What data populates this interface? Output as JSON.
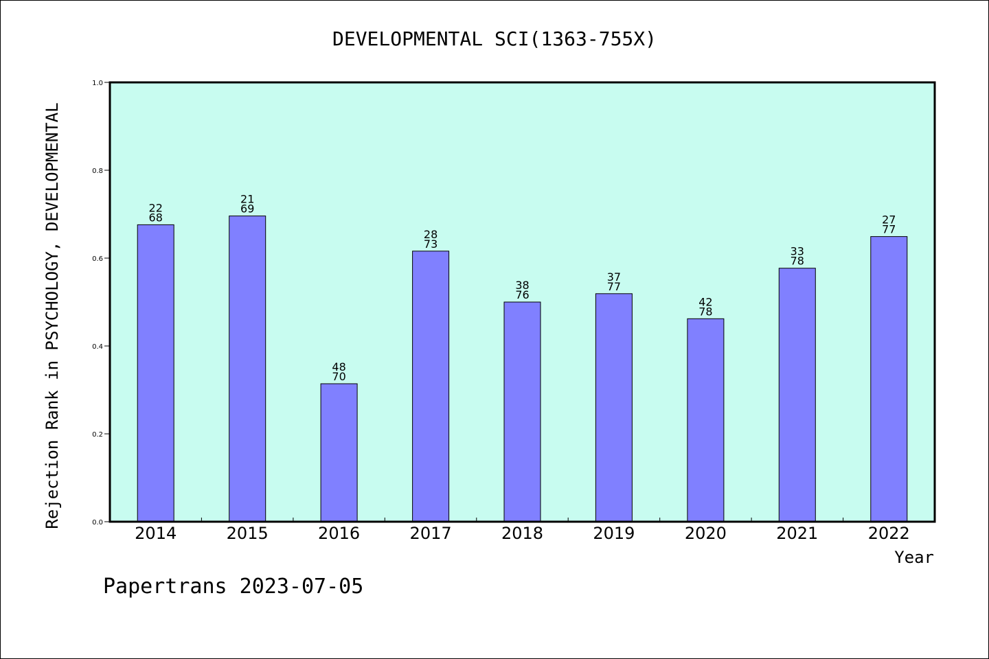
{
  "chart_data": {
    "type": "bar",
    "title": "DEVELOPMENTAL SCI(1363-755X)",
    "xlabel": "Year",
    "ylabel": "Rejection Rank in PSYCHOLOGY, DEVELOPMENTAL",
    "footer": "Papertrans 2023-07-05",
    "categories": [
      "2014",
      "2015",
      "2016",
      "2017",
      "2018",
      "2019",
      "2020",
      "2021",
      "2022"
    ],
    "values": [
      0.676,
      0.696,
      0.314,
      0.616,
      0.5,
      0.519,
      0.462,
      0.577,
      0.649
    ],
    "bar_labels": [
      [
        "22",
        "68"
      ],
      [
        "21",
        "69"
      ],
      [
        "48",
        "70"
      ],
      [
        "28",
        "73"
      ],
      [
        "38",
        "76"
      ],
      [
        "37",
        "77"
      ],
      [
        "42",
        "78"
      ],
      [
        "33",
        "78"
      ],
      [
        "27",
        "77"
      ]
    ],
    "yticks": [
      "0.0",
      "0.2",
      "0.4",
      "0.6",
      "0.8",
      "1.0"
    ],
    "ylim": [
      0,
      1
    ],
    "grid": false,
    "legend": "none",
    "colors": {
      "plot_background": "#c8fcf0",
      "bar_fill": "#8080ff",
      "bar_stroke": "#000000",
      "axis": "#000000"
    }
  }
}
